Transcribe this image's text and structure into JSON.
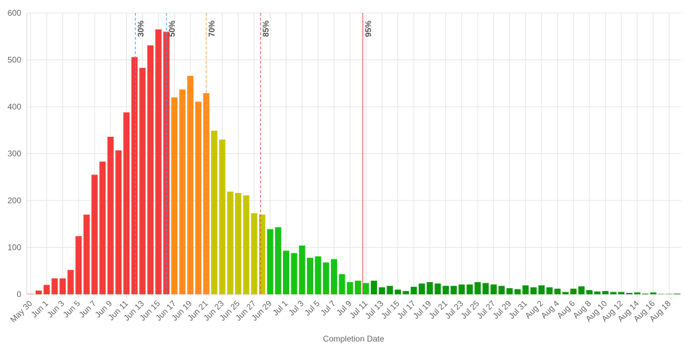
{
  "chart_data": {
    "type": "bar",
    "xlabel": "Completion Date",
    "ylabel": "",
    "ylim": [
      0,
      600
    ],
    "yticks": [
      "0",
      "100",
      "200",
      "300",
      "400",
      "500",
      "600"
    ],
    "grid": true,
    "legend": "none",
    "start_date": "2020-05-30",
    "x_tick_labels": [
      "May 30",
      "Jun 1",
      "Jun 3",
      "Jun 5",
      "Jun 7",
      "Jun 9",
      "Jun 11",
      "Jun 13",
      "Jun 15",
      "Jun 17",
      "Jun 19",
      "Jun 21",
      "Jun 23",
      "Jun 25",
      "Jun 27",
      "Jun 29",
      "Jul 1",
      "Jul 3",
      "Jul 5",
      "Jul 7",
      "Jul 9",
      "Jul 11",
      "Jul 13",
      "Jul 15",
      "Jul 17",
      "Jul 19",
      "Jul 21",
      "Jul 23",
      "Jul 25",
      "Jul 27",
      "Jul 29",
      "Jul 31",
      "Aug 2",
      "Aug 4",
      "Aug 6",
      "Aug 8",
      "Aug 10",
      "Aug 12",
      "Aug 14",
      "Aug 16",
      "Aug 18"
    ],
    "values": [
      0,
      8,
      20,
      34,
      34,
      52,
      124,
      170,
      255,
      283,
      336,
      307,
      388,
      506,
      483,
      531,
      565,
      560,
      420,
      437,
      466,
      411,
      429,
      349,
      330,
      219,
      216,
      211,
      173,
      170,
      139,
      143,
      93,
      88,
      104,
      78,
      81,
      68,
      75,
      43,
      26,
      29,
      24,
      29,
      15,
      18,
      10,
      7,
      16,
      23,
      26,
      23,
      18,
      18,
      21,
      21,
      26,
      24,
      21,
      18,
      13,
      11,
      19,
      15,
      19,
      15,
      12,
      5,
      12,
      17,
      9,
      6,
      7,
      5,
      5,
      3,
      4,
      1,
      4,
      0,
      0,
      1
    ],
    "bar_colors": [
      "#f43b3b",
      "#f43b3b",
      "#f43b3b",
      "#f43b3b",
      "#f43b3b",
      "#f43b3b",
      "#f43b3b",
      "#f43b3b",
      "#f43b3b",
      "#f43b3b",
      "#f43b3b",
      "#f43b3b",
      "#f43b3b",
      "#f43b3b",
      "#f43b3b",
      "#f43b3b",
      "#f43b3b",
      "#f43b3b",
      "#ff8c1a",
      "#ff8c1a",
      "#ff8c1a",
      "#ff8c1a",
      "#ff8c1a",
      "#c6c600",
      "#c6c600",
      "#c6c600",
      "#c6c600",
      "#c6c600",
      "#c6c600",
      "#c6c600",
      "#15c415",
      "#15c415",
      "#15c415",
      "#15c415",
      "#15c415",
      "#15c415",
      "#15c415",
      "#15c415",
      "#15c415",
      "#15c415",
      "#15c415",
      "#15c415",
      "#15c415",
      "#0a960a",
      "#0a960a",
      "#0a960a",
      "#0a960a",
      "#0a960a",
      "#0a960a",
      "#0a960a",
      "#0a960a",
      "#0a960a",
      "#0a960a",
      "#0a960a",
      "#0a960a",
      "#0a960a",
      "#0a960a",
      "#0a960a",
      "#0a960a",
      "#0a960a",
      "#0a960a",
      "#0a960a",
      "#0a960a",
      "#0a960a",
      "#0a960a",
      "#0a960a",
      "#0a960a",
      "#0a960a",
      "#0a960a",
      "#0a960a",
      "#0a960a",
      "#0a960a",
      "#0a960a",
      "#0a960a",
      "#0a960a",
      "#0a960a",
      "#0a960a",
      "#0a960a",
      "#0a960a",
      "#0a960a",
      "#0a960a",
      "#0a960a"
    ],
    "percentile_markers": [
      {
        "label": "30%",
        "date": "Jun 13",
        "color": "#36a2eb",
        "style": "dashed"
      },
      {
        "label": "50%",
        "date": "Jun 17",
        "color": "#36a2eb",
        "style": "dashed"
      },
      {
        "label": "70%",
        "date": "Jun 22",
        "color": "#ff9f40",
        "style": "dashed"
      },
      {
        "label": "85%",
        "date": "Jun 29",
        "color": "#e8453c",
        "style": "dashed"
      },
      {
        "label": "95%",
        "date": "Jul 12",
        "color": "#e8453c",
        "style": "solid"
      }
    ],
    "marker_day_offsets": [
      13.6,
      17.5,
      22.5,
      29.3,
      42.1
    ]
  }
}
